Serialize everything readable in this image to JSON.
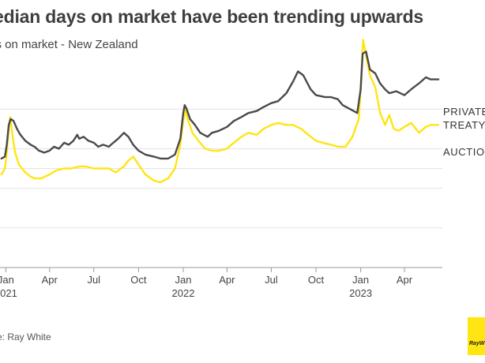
{
  "header": {
    "title": "edian days on market have been trending upwards",
    "subtitle": "ys on market - New Zealand"
  },
  "source": "rce: Ray White",
  "logo_text": "RayW",
  "chart_data": {
    "type": "line",
    "x_ticks": [
      {
        "date": "2021-01-01",
        "label": "Jan",
        "year": "2021"
      },
      {
        "date": "2021-04-01",
        "label": "Apr"
      },
      {
        "date": "2021-07-01",
        "label": "Jul"
      },
      {
        "date": "2021-10-01",
        "label": "Oct"
      },
      {
        "date": "2022-01-01",
        "label": "Jan",
        "year": "2022"
      },
      {
        "date": "2022-04-01",
        "label": "Apr"
      },
      {
        "date": "2022-07-01",
        "label": "Jul"
      },
      {
        "date": "2022-10-01",
        "label": "Oct"
      },
      {
        "date": "2023-01-01",
        "label": "Jan",
        "year": "2023"
      },
      {
        "date": "2023-04-01",
        "label": "Apr"
      }
    ],
    "x_range": [
      "2020-12-20",
      "2023-06-18"
    ],
    "y_range": [
      0,
      100
    ],
    "gridlines": [
      20,
      40,
      50,
      60,
      80
    ],
    "grid": true,
    "colors": {
      "private_treaty": "#4a4a4a",
      "auction": "#ffe512",
      "grid": "#e3e3e3",
      "axis": "#999999"
    },
    "series": [
      {
        "key": "private_treaty",
        "name_lines": [
          "PRIVATE",
          "TREATY"
        ],
        "points": [
          [
            "2020-12-23",
            55
          ],
          [
            "2020-12-30",
            56
          ],
          [
            "2021-01-03",
            62
          ],
          [
            "2021-01-07",
            72
          ],
          [
            "2021-01-11",
            75
          ],
          [
            "2021-01-17",
            74
          ],
          [
            "2021-01-24",
            70
          ],
          [
            "2021-01-31",
            67
          ],
          [
            "2021-02-10",
            64
          ],
          [
            "2021-02-21",
            62
          ],
          [
            "2021-03-01",
            61
          ],
          [
            "2021-03-10",
            59
          ],
          [
            "2021-03-21",
            58
          ],
          [
            "2021-04-01",
            59
          ],
          [
            "2021-04-10",
            61
          ],
          [
            "2021-04-20",
            60
          ],
          [
            "2021-05-01",
            63
          ],
          [
            "2021-05-10",
            62
          ],
          [
            "2021-05-20",
            64
          ],
          [
            "2021-05-28",
            67
          ],
          [
            "2021-06-01",
            65
          ],
          [
            "2021-06-10",
            66
          ],
          [
            "2021-06-20",
            64
          ],
          [
            "2021-07-01",
            63
          ],
          [
            "2021-07-10",
            61
          ],
          [
            "2021-07-20",
            62
          ],
          [
            "2021-08-01",
            61
          ],
          [
            "2021-08-10",
            63
          ],
          [
            "2021-08-20",
            65
          ],
          [
            "2021-09-01",
            68
          ],
          [
            "2021-09-10",
            66
          ],
          [
            "2021-09-20",
            62
          ],
          [
            "2021-10-01",
            59
          ],
          [
            "2021-10-15",
            57
          ],
          [
            "2021-11-01",
            56
          ],
          [
            "2021-11-15",
            55
          ],
          [
            "2021-12-01",
            55
          ],
          [
            "2021-12-15",
            57
          ],
          [
            "2021-12-26",
            65
          ],
          [
            "2022-01-01",
            78
          ],
          [
            "2022-01-04",
            82
          ],
          [
            "2022-01-08",
            80
          ],
          [
            "2022-01-15",
            75
          ],
          [
            "2022-01-25",
            72
          ],
          [
            "2022-02-05",
            68
          ],
          [
            "2022-02-20",
            66
          ],
          [
            "2022-03-01",
            68
          ],
          [
            "2022-03-15",
            69
          ],
          [
            "2022-04-01",
            71
          ],
          [
            "2022-04-15",
            74
          ],
          [
            "2022-05-01",
            76
          ],
          [
            "2022-05-15",
            78
          ],
          [
            "2022-06-01",
            79
          ],
          [
            "2022-06-15",
            81
          ],
          [
            "2022-07-01",
            83
          ],
          [
            "2022-07-15",
            84
          ],
          [
            "2022-08-01",
            88
          ],
          [
            "2022-08-15",
            94
          ],
          [
            "2022-08-25",
            99
          ],
          [
            "2022-09-05",
            97
          ],
          [
            "2022-09-20",
            90
          ],
          [
            "2022-10-01",
            87
          ],
          [
            "2022-10-20",
            86
          ],
          [
            "2022-11-01",
            86
          ],
          [
            "2022-11-15",
            85
          ],
          [
            "2022-11-25",
            82
          ],
          [
            "2022-12-10",
            80
          ],
          [
            "2022-12-25",
            78
          ],
          [
            "2023-01-01",
            90
          ],
          [
            "2023-01-05",
            108
          ],
          [
            "2023-01-12",
            109
          ],
          [
            "2023-01-20",
            100
          ],
          [
            "2023-01-31",
            98
          ],
          [
            "2023-02-10",
            93
          ],
          [
            "2023-02-20",
            90
          ],
          [
            "2023-03-01",
            88
          ],
          [
            "2023-03-15",
            89
          ],
          [
            "2023-04-01",
            87
          ],
          [
            "2023-04-15",
            90
          ],
          [
            "2023-05-01",
            93
          ],
          [
            "2023-05-15",
            96
          ],
          [
            "2023-05-25",
            95
          ],
          [
            "2023-06-02",
            95
          ],
          [
            "2023-06-10",
            95
          ]
        ]
      },
      {
        "key": "auction",
        "name_lines": [
          "AUCTION"
        ],
        "points": [
          [
            "2020-12-23",
            47
          ],
          [
            "2020-12-30",
            50
          ],
          [
            "2021-01-03",
            58
          ],
          [
            "2021-01-07",
            70
          ],
          [
            "2021-01-10",
            76
          ],
          [
            "2021-01-14",
            68
          ],
          [
            "2021-01-20",
            58
          ],
          [
            "2021-01-28",
            52
          ],
          [
            "2021-02-10",
            48
          ],
          [
            "2021-02-20",
            46
          ],
          [
            "2021-03-01",
            45
          ],
          [
            "2021-03-15",
            45
          ],
          [
            "2021-04-01",
            47
          ],
          [
            "2021-04-15",
            49
          ],
          [
            "2021-05-01",
            50
          ],
          [
            "2021-05-15",
            50
          ],
          [
            "2021-06-01",
            51
          ],
          [
            "2021-06-15",
            51
          ],
          [
            "2021-07-01",
            50
          ],
          [
            "2021-07-15",
            50
          ],
          [
            "2021-08-01",
            50
          ],
          [
            "2021-08-15",
            48
          ],
          [
            "2021-09-01",
            51
          ],
          [
            "2021-09-10",
            54
          ],
          [
            "2021-09-20",
            56
          ],
          [
            "2021-10-01",
            52
          ],
          [
            "2021-10-15",
            47
          ],
          [
            "2021-11-01",
            44
          ],
          [
            "2021-11-15",
            43
          ],
          [
            "2021-12-01",
            45
          ],
          [
            "2021-12-15",
            50
          ],
          [
            "2021-12-26",
            62
          ],
          [
            "2022-01-01",
            74
          ],
          [
            "2022-01-05",
            80
          ],
          [
            "2022-01-10",
            75
          ],
          [
            "2022-01-20",
            68
          ],
          [
            "2022-02-01",
            64
          ],
          [
            "2022-02-15",
            60
          ],
          [
            "2022-03-01",
            59
          ],
          [
            "2022-03-15",
            59
          ],
          [
            "2022-04-01",
            60
          ],
          [
            "2022-04-15",
            63
          ],
          [
            "2022-05-01",
            66
          ],
          [
            "2022-05-15",
            68
          ],
          [
            "2022-06-01",
            67
          ],
          [
            "2022-06-15",
            70
          ],
          [
            "2022-07-01",
            72
          ],
          [
            "2022-07-15",
            73
          ],
          [
            "2022-08-01",
            72
          ],
          [
            "2022-08-15",
            72
          ],
          [
            "2022-09-01",
            70
          ],
          [
            "2022-09-15",
            67
          ],
          [
            "2022-10-01",
            64
          ],
          [
            "2022-10-15",
            63
          ],
          [
            "2022-11-01",
            62
          ],
          [
            "2022-11-15",
            61
          ],
          [
            "2022-12-01",
            61
          ],
          [
            "2022-12-15",
            66
          ],
          [
            "2022-12-28",
            75
          ],
          [
            "2023-01-02",
            95
          ],
          [
            "2023-01-06",
            115
          ],
          [
            "2023-01-12",
            107
          ],
          [
            "2023-01-20",
            97
          ],
          [
            "2023-01-31",
            91
          ],
          [
            "2023-02-10",
            78
          ],
          [
            "2023-02-20",
            72
          ],
          [
            "2023-03-01",
            77
          ],
          [
            "2023-03-10",
            70
          ],
          [
            "2023-03-20",
            69
          ],
          [
            "2023-04-01",
            71
          ],
          [
            "2023-04-15",
            73
          ],
          [
            "2023-05-01",
            68
          ],
          [
            "2023-05-15",
            71
          ],
          [
            "2023-05-25",
            72
          ],
          [
            "2023-06-05",
            72
          ],
          [
            "2023-06-10",
            72
          ]
        ]
      }
    ]
  }
}
